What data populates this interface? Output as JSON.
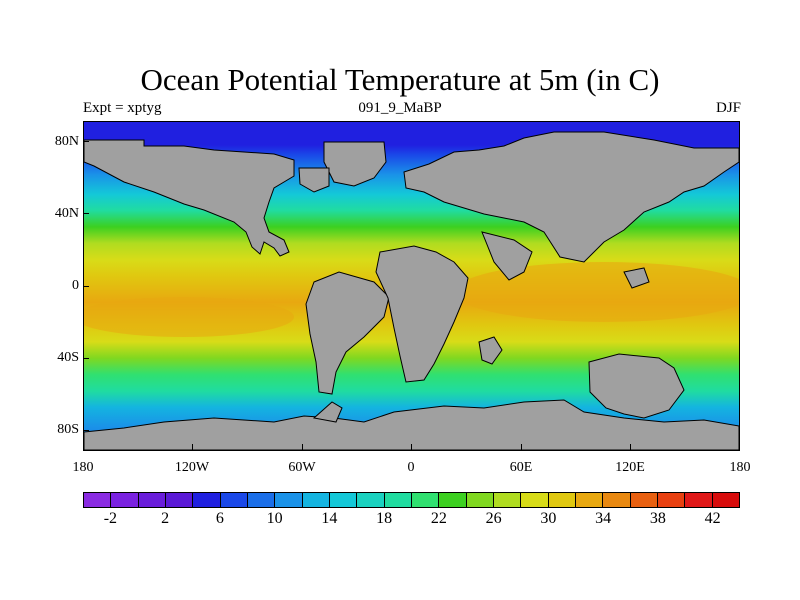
{
  "title": "Ocean Potential Temperature at 5m (in C)",
  "subtitle_left": "Expt = xptyg",
  "subtitle_center": "091_9_MaBP",
  "subtitle_right": "DJF",
  "y_ticks": [
    "80N",
    "40N",
    "0",
    "40S",
    "80S"
  ],
  "x_ticks": [
    "180",
    "120W",
    "60W",
    "0",
    "60E",
    "120E",
    "180"
  ],
  "colorbar": {
    "labels": [
      "-2",
      "2",
      "6",
      "10",
      "14",
      "18",
      "22",
      "26",
      "30",
      "34",
      "38",
      "42"
    ],
    "colors": [
      "#8a2be2",
      "#7a22e0",
      "#6a1ddb",
      "#5a19d6",
      "#2020e0",
      "#1a48e8",
      "#1a6ee8",
      "#1a92e8",
      "#14b4e0",
      "#14c8d8",
      "#1ad2c0",
      "#20dca0",
      "#30e070",
      "#3cd020",
      "#80d820",
      "#b0dc20",
      "#d8dc18",
      "#e0c810",
      "#e8a810",
      "#e88810",
      "#e86010",
      "#e84010",
      "#e01818",
      "#d80c0c"
    ]
  },
  "map": {
    "land_color": "#a0a0a0",
    "projection": "cylindrical-equidistant",
    "lon_range": [
      -180,
      180
    ],
    "lat_range": [
      -90,
      90
    ]
  }
}
